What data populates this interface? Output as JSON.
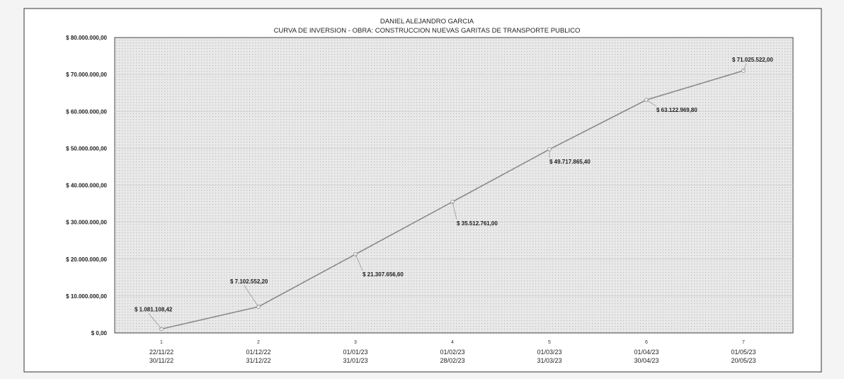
{
  "chart_data": {
    "type": "line",
    "title": "DANIEL ALEJANDRO GARCIA",
    "subtitle": "CURVA DE INVERSION   -   OBRA: CONSTRUCCION NUEVAS GARITAS DE TRANSPORTE PUBLICO",
    "xlabel": "",
    "ylabel": "",
    "ylim": [
      0,
      80000000
    ],
    "grid": true,
    "legend": "none",
    "y_ticks": [
      {
        "value": 80000000,
        "label": "$ 80.000.000,00"
      },
      {
        "value": 70000000,
        "label": "$ 70.000.000,00"
      },
      {
        "value": 60000000,
        "label": "$ 60.000.000,00"
      },
      {
        "value": 50000000,
        "label": "$ 50.000.000,00"
      },
      {
        "value": 40000000,
        "label": "$ 40.000.000,00"
      },
      {
        "value": 30000000,
        "label": "$ 30.000.000,00"
      },
      {
        "value": 20000000,
        "label": "$ 20.000.000,00"
      },
      {
        "value": 10000000,
        "label": "$ 10.000.000,00"
      },
      {
        "value": 0,
        "label": "$ 0,00"
      }
    ],
    "categories": [
      {
        "num": "1",
        "from": "22/11/22",
        "to": "30/11/22"
      },
      {
        "num": "2",
        "from": "01/12/22",
        "to": "31/12/22"
      },
      {
        "num": "3",
        "from": "01/01/23",
        "to": "31/01/23"
      },
      {
        "num": "4",
        "from": "01/02/23",
        "to": "28/02/23"
      },
      {
        "num": "5",
        "from": "01/03/23",
        "to": "31/03/23"
      },
      {
        "num": "6",
        "from": "01/04/23",
        "to": "30/04/23"
      },
      {
        "num": "7",
        "from": "01/05/23",
        "to": "20/05/23"
      }
    ],
    "values": [
      1081108.42,
      7102552.2,
      21307656.6,
      35512761.0,
      49717865.4,
      63122969.8,
      71025522.0
    ],
    "data_labels": [
      "$ 1.081.108,42",
      "$ 7.102.552,20",
      "$ 21.307.656,60",
      "$ 35.512.761,00",
      "$ 49.717.865,40",
      "$ 63.122.969,80",
      "$ 71.025.522,00"
    ],
    "colors": {
      "line": "#8a8a8a",
      "marker": "#9a9a9a",
      "plot_bg": "#e9e9e9",
      "dot": "#b3b3b3"
    }
  }
}
